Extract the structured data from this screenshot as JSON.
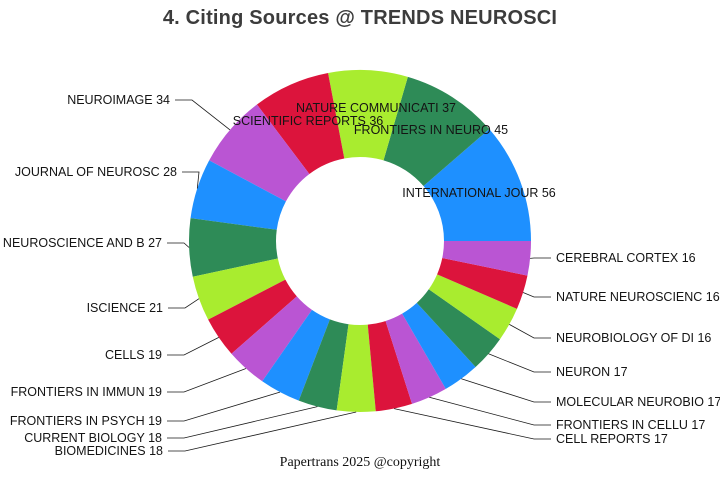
{
  "chart_data": {
    "type": "pie",
    "variant": "donut",
    "title": "4. Citing Sources @ TRENDS NEUROSCI",
    "footer": "Papertrans 2025 @copyright",
    "legend_position": "none",
    "labels_show_values": true,
    "direction": "counterclockwise",
    "start_angle_deg": 0,
    "donut_hole_ratio": 0.49,
    "palette": [
      "#1E90FF",
      "#2E8B57",
      "#A9EC2F",
      "#DC143C",
      "#BA55D3"
    ],
    "title_color": "#3C3C3C",
    "label_color": "#141414",
    "slices": [
      {
        "label": "INTERNATIONAL JOUR",
        "value": 56
      },
      {
        "label": "FRONTIERS IN NEURO",
        "value": 45
      },
      {
        "label": "NATURE COMMUNICATI",
        "value": 37
      },
      {
        "label": "SCIENTIFIC REPORTS",
        "value": 36
      },
      {
        "label": "NEUROIMAGE",
        "value": 34
      },
      {
        "label": "JOURNAL OF NEUROSC",
        "value": 28
      },
      {
        "label": "NEUROSCIENCE AND B",
        "value": 27
      },
      {
        "label": "ISCIENCE",
        "value": 21
      },
      {
        "label": "CELLS",
        "value": 19
      },
      {
        "label": "FRONTIERS IN IMMUN",
        "value": 19
      },
      {
        "label": "FRONTIERS IN PSYCH",
        "value": 19
      },
      {
        "label": "CURRENT BIOLOGY",
        "value": 18
      },
      {
        "label": "BIOMEDICINES",
        "value": 18
      },
      {
        "label": "CELL REPORTS",
        "value": 17
      },
      {
        "label": "FRONTIERS IN CELLU",
        "value": 17
      },
      {
        "label": "MOLECULAR NEUROBIO",
        "value": 17
      },
      {
        "label": "NEURON",
        "value": 17
      },
      {
        "label": "NEUROBIOLOGY OF DI",
        "value": 16
      },
      {
        "label": "NATURE NEUROSCIENC",
        "value": 16
      },
      {
        "label": "CEREBRAL CORTEX",
        "value": 16
      }
    ]
  }
}
